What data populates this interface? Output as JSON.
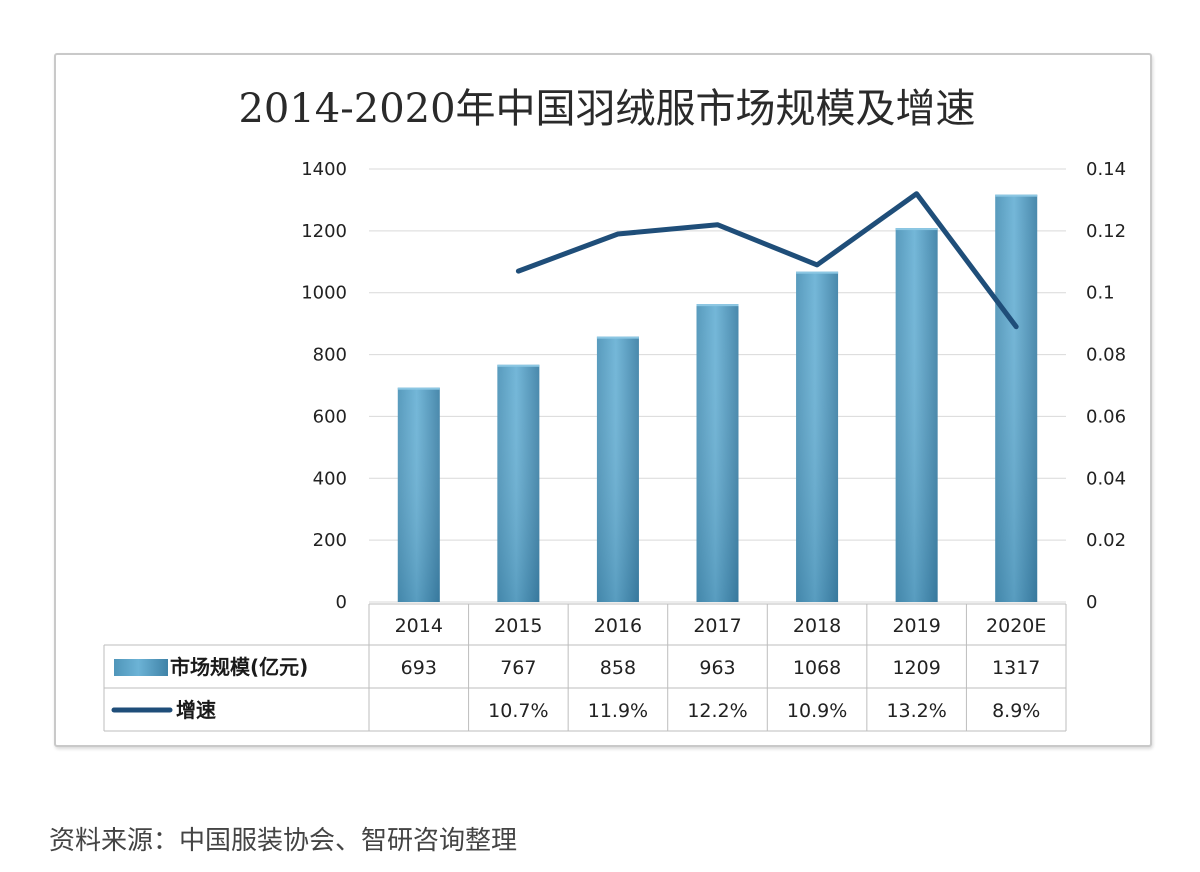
{
  "chart_data": {
    "type": "bar",
    "title": "2014-2020年中国羽绒服市场规模及增速",
    "categories": [
      "2014",
      "2015",
      "2016",
      "2017",
      "2018",
      "2019",
      "2020E"
    ],
    "series": [
      {
        "name": "市场规模(亿元)",
        "type": "bar",
        "axis": "left",
        "values": [
          693,
          767,
          858,
          963,
          1068,
          1209,
          1317
        ],
        "labels": [
          "693",
          "767",
          "858",
          "963",
          "1068",
          "1209",
          "1317"
        ]
      },
      {
        "name": "增速",
        "type": "line",
        "axis": "right",
        "values": [
          null,
          0.107,
          0.119,
          0.122,
          0.109,
          0.132,
          0.089
        ],
        "labels": [
          "",
          "10.7%",
          "11.9%",
          "12.2%",
          "10.9%",
          "13.2%",
          "8.9%"
        ]
      }
    ],
    "y_left": {
      "min": 0,
      "max": 1400,
      "ticks": [
        "0",
        "200",
        "400",
        "600",
        "800",
        "1000",
        "1200",
        "1400"
      ]
    },
    "y_right": {
      "min": 0,
      "max": 0.14,
      "ticks": [
        "0",
        "0.02",
        "0.04",
        "0.06",
        "0.08",
        "0.1",
        "0.12",
        "0.14"
      ]
    },
    "grid": true,
    "legend": "data-table-bottom",
    "colors": {
      "bar": "#5ba3c6",
      "bar_dark": "#3d7fa3",
      "line": "#1f4e79",
      "grid": "#d9d9d9"
    }
  },
  "source": "资料来源：中国服装协会、智研咨询整理"
}
